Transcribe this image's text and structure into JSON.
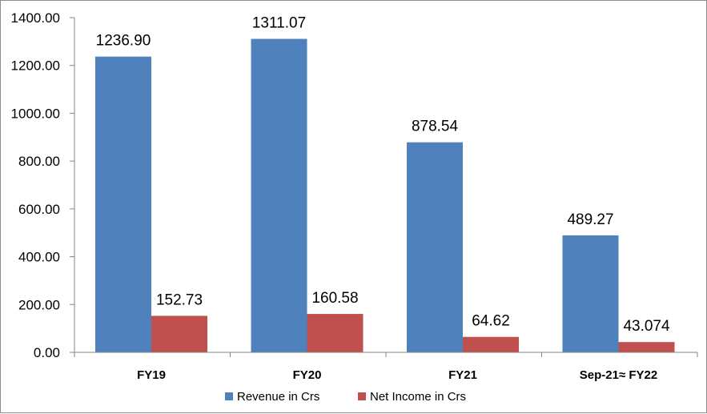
{
  "chart_data": {
    "type": "bar",
    "title": "",
    "xlabel": "",
    "ylabel": "",
    "categories": [
      "FY19",
      "FY20",
      "FY21",
      "Sep-21≈ FY22"
    ],
    "series": [
      {
        "name": "Revenue in Crs",
        "color": "#4f81bd",
        "values": [
          1236.9,
          1311.07,
          878.54,
          489.27
        ],
        "labels": [
          "1236.90",
          "1311.07",
          "878.54",
          "489.27"
        ]
      },
      {
        "name": "Net Income in Crs",
        "color": "#c0504d",
        "values": [
          152.73,
          160.58,
          64.62,
          43.074
        ],
        "labels": [
          "152.73",
          "160.58",
          "64.62",
          "43.074"
        ]
      }
    ],
    "ylim": [
      0,
      1400
    ],
    "y_ticks": [
      "0.00",
      "200.00",
      "400.00",
      "600.00",
      "800.00",
      "1000.00",
      "1200.00",
      "1400.00"
    ],
    "grid": false,
    "legend_position": "bottom"
  }
}
